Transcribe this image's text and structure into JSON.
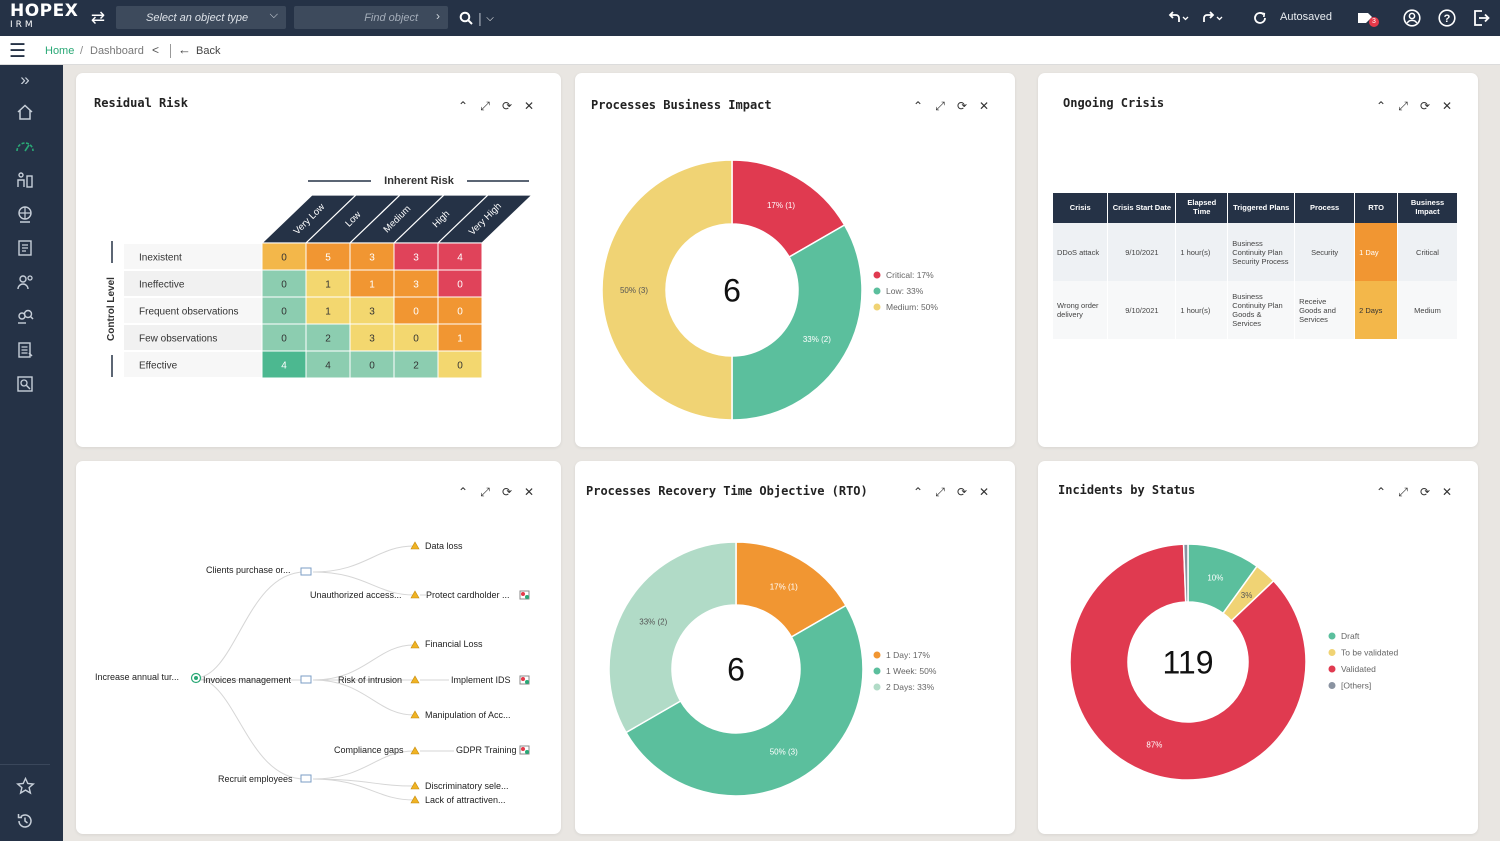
{
  "app": {
    "logo_main": "HOPEX",
    "logo_sub": "IRM"
  },
  "topbar": {
    "select_placeholder": "Select an object type",
    "find_placeholder": "Find object",
    "autosaved": "Autosaved",
    "notification_count": "3"
  },
  "breadcrumb": {
    "home": "Home",
    "separator": "/",
    "current": "Dashboard",
    "back": "Back"
  },
  "colors": {
    "navy": "#253246",
    "green": "#2aa876",
    "red": "#e53949"
  },
  "sidebar": {
    "icons": [
      "expand-icon",
      "home-icon",
      "dashboard-icon",
      "organization-icon",
      "globe-icon",
      "book-icon",
      "user-settings-icon",
      "search-people-icon",
      "report-icon",
      "audit-icon",
      "star-icon",
      "history-icon"
    ]
  },
  "residual_risk": {
    "title": "Residual Risk",
    "inherent_label": "Inherent Risk",
    "control_label": "Control Level",
    "columns": [
      "Very Low",
      "Low",
      "Medium",
      "High",
      "Very High"
    ],
    "rows": [
      {
        "label": "Inexistent",
        "values": [
          "0",
          "5",
          "3",
          "3",
          "4"
        ],
        "colors": [
          "#f3b74a",
          "#f19632",
          "#f19632",
          "#e0435a",
          "#e0435a"
        ]
      },
      {
        "label": "Ineffective",
        "values": [
          "0",
          "1",
          "1",
          "3",
          "0"
        ],
        "colors": [
          "#8ccdb0",
          "#f3d76f",
          "#f19632",
          "#f19632",
          "#e0435a"
        ]
      },
      {
        "label": "Frequent observations",
        "values": [
          "0",
          "1",
          "3",
          "0",
          "0"
        ],
        "colors": [
          "#8ccdb0",
          "#f3d76f",
          "#f3d76f",
          "#f19632",
          "#f19632"
        ]
      },
      {
        "label": "Few observations",
        "values": [
          "0",
          "2",
          "3",
          "0",
          "1"
        ],
        "colors": [
          "#8ccdb0",
          "#8ccdb0",
          "#f3d76f",
          "#f3d76f",
          "#f19632"
        ]
      },
      {
        "label": "Effective",
        "values": [
          "4",
          "4",
          "0",
          "2",
          "0"
        ],
        "colors": [
          "#4cb890",
          "#8ccdb0",
          "#8ccdb0",
          "#8ccdb0",
          "#f3d76f"
        ]
      }
    ]
  },
  "business_impact": {
    "title": "Processes Business Impact",
    "center": "6",
    "chart_data": {
      "type": "pie",
      "slices": [
        {
          "label": "Critical: 17%",
          "value": 1,
          "display": "17% (1)",
          "color": "#e03a50"
        },
        {
          "label": "Low: 33%",
          "value": 2,
          "display": "33% (2)",
          "color": "#5bbf9d"
        },
        {
          "label": "Medium: 50%",
          "value": 3,
          "display": "50% (3)",
          "color": "#f0d374"
        }
      ]
    }
  },
  "ongoing_crisis": {
    "title": "Ongoing Crisis",
    "headers": [
      "Crisis",
      "Crisis Start Date",
      "Elapsed Time",
      "Triggered Plans",
      "Process",
      "RTO",
      "Business Impact"
    ],
    "rows": [
      [
        "DDoS attack",
        "9/10/2021",
        "1 hour(s)",
        "Business Continuity Plan Security Process",
        "Security",
        "1 Day",
        "Critical"
      ],
      [
        "Wrong order delivery",
        "9/10/2021",
        "1 hour(s)",
        "Business Continuity Plan Goods & Services",
        "Receive Goods and Services",
        "2 Days",
        "Medium"
      ]
    ]
  },
  "risk_tree": {
    "nodes": [
      "Increase annual tur...",
      "Clients purchase or...",
      "Invoices management",
      "Recruit employees",
      "Data loss",
      "Unauthorized access...",
      "Protect cardholder ...",
      "Financial Loss",
      "Risk of intrusion",
      "Implement IDS",
      "Manipulation of Acc...",
      "Compliance gaps",
      "GDPR Training",
      "Discriminatory sele...",
      "Lack of attractiven..."
    ]
  },
  "rto": {
    "title": "Processes Recovery Time Objective (RTO)",
    "center": "6",
    "chart_data": {
      "type": "pie",
      "slices": [
        {
          "label": "1 Day: 17%",
          "value": 1,
          "display": "17% (1)",
          "color": "#f19632"
        },
        {
          "label": "1 Week: 50%",
          "value": 3,
          "display": "50% (3)",
          "color": "#5bbf9d"
        },
        {
          "label": "2 Days: 33%",
          "value": 2,
          "display": "33% (2)",
          "color": "#b1dbc7"
        }
      ]
    }
  },
  "incidents": {
    "title": "Incidents by Status",
    "center": "119",
    "chart_data": {
      "type": "pie",
      "slices": [
        {
          "label": "Draft",
          "value": 10,
          "display": "10%",
          "color": "#5bbf9d"
        },
        {
          "label": "To be validated",
          "value": 3,
          "display": "3%",
          "color": "#f0d374"
        },
        {
          "label": "Validated",
          "value": 87,
          "display": "87%",
          "color": "#e03a50"
        },
        {
          "label": "[Others]",
          "value": 0.6,
          "display": "",
          "color": "#8a93a1"
        }
      ]
    }
  }
}
